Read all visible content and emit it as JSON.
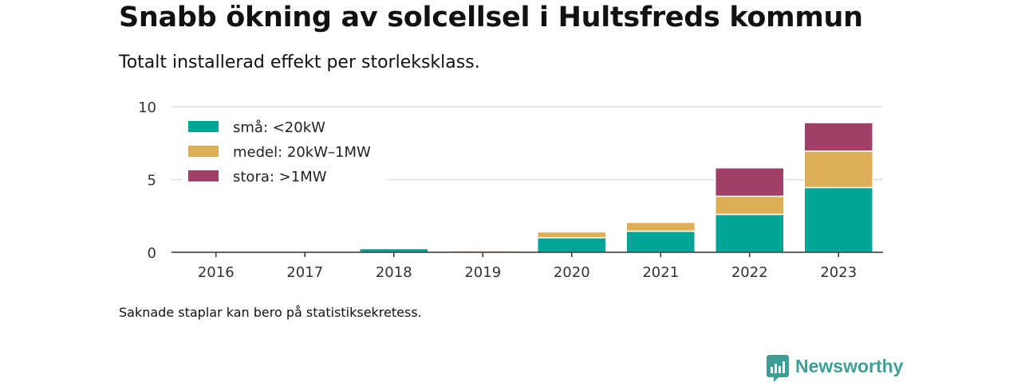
{
  "title": "Snabb ökning av solcellsel i Hultsfreds kommun",
  "subtitle": "Totalt installerad effekt per storleksklass.",
  "footnote": "Saknade staplar kan bero på statistiksekretess.",
  "brand": {
    "name": "Newsworthy"
  },
  "chart_data": {
    "type": "bar",
    "stacked": true,
    "categories": [
      "2016",
      "2017",
      "2018",
      "2019",
      "2020",
      "2021",
      "2022",
      "2023"
    ],
    "series": [
      {
        "name": "små: <20kW",
        "color": "#00a598",
        "values": [
          0,
          0,
          0.25,
          0.05,
          1.0,
          1.45,
          2.6,
          4.45
        ]
      },
      {
        "name": "medel: 20kW–1MW",
        "color": "#ddae55",
        "values": [
          0,
          0,
          0,
          0.1,
          0.4,
          0.6,
          1.25,
          2.5
        ]
      },
      {
        "name": "stora: >1MW",
        "color": "#a23f66",
        "values": [
          0,
          0,
          0,
          0,
          0,
          0,
          1.95,
          1.95
        ]
      }
    ],
    "yticks": [
      0,
      5,
      10
    ],
    "ylim": [
      0,
      10
    ],
    "grid": true,
    "legend_position": "top-left",
    "xlabel": "",
    "ylabel": ""
  }
}
